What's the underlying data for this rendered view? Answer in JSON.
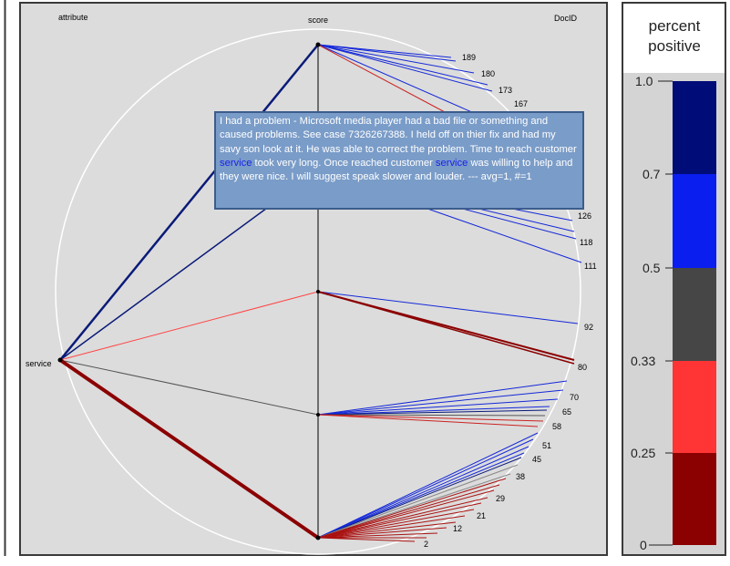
{
  "diagram": {
    "axis_labels": {
      "attribute": "attribute",
      "score": "score",
      "docid": "DocID"
    },
    "attribute_node": "service",
    "score_marks": [
      "",
      "",
      "",
      ""
    ],
    "doc_ids": [
      "189",
      "180",
      "173",
      "167",
      "126",
      "118",
      "111",
      "92",
      "80",
      "70",
      "65",
      "58",
      "51",
      "45",
      "38",
      "29",
      "21",
      "12",
      "2"
    ],
    "colors": {
      "dark_blue": "#0a1a78",
      "blue": "#1428e0",
      "gray": "#444444",
      "red": "#ff3333",
      "dark_red": "#8b0000"
    }
  },
  "tooltip": {
    "before": "I had a problem - Microsoft media player had a bad file or something and caused problems. See case 7326267388. I held off on thier fix and had my savy son look at it. He was able to correct the problem. Time to reach customer ",
    "kw1": "service",
    "middle": " took very long. Once reached customer ",
    "kw2": "service",
    "after": " was willing to help and they were nice. I will suggest speak slower and louder. --- avg=1, #=1"
  },
  "legend": {
    "title_line1": "percent",
    "title_line2": "positive",
    "ticks": [
      "1.0",
      "0.7",
      "0.5",
      "0.33",
      "0.25",
      "0"
    ],
    "bands": [
      {
        "from": 0.7,
        "to": 1.0,
        "color": "#000c78"
      },
      {
        "from": 0.5,
        "to": 0.7,
        "color": "#0a1ef0"
      },
      {
        "from": 0.33,
        "to": 0.5,
        "color": "#464646"
      },
      {
        "from": 0.25,
        "to": 0.33,
        "color": "#ff3434"
      },
      {
        "from": 0,
        "to": 0.25,
        "color": "#8b0000"
      }
    ]
  }
}
